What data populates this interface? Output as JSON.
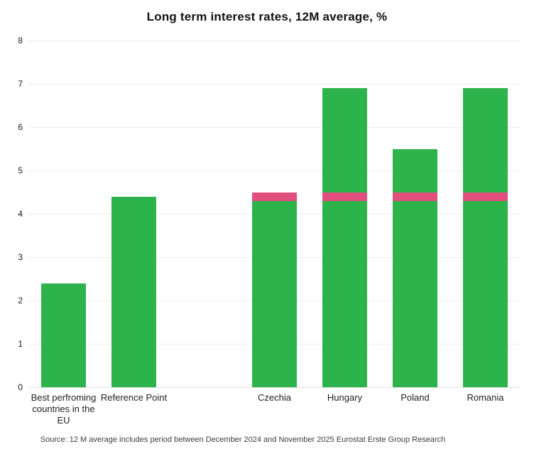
{
  "chart_data": {
    "type": "bar",
    "title": "Long term interest rates, 12M average, %",
    "xlabel": "",
    "ylabel": "",
    "ylim": [
      0,
      8
    ],
    "yticks": [
      0,
      1,
      2,
      3,
      4,
      5,
      6,
      7,
      8
    ],
    "grid": true,
    "legend": false,
    "slot_count": 7,
    "colors": {
      "bar_green": "#2db34c",
      "band_pink": "#e24e7d",
      "gridline": "#ececec",
      "baseline": "#e0e0e0",
      "axis_text": "#1a1a1a"
    },
    "bars": [
      {
        "label": "Best perfroming countries in the EU",
        "label_lines": [
          "Best perfroming",
          "countries in the",
          "EU"
        ],
        "slot": 0,
        "value": 2.4,
        "pink_band": null
      },
      {
        "label": "Reference Point",
        "label_lines": [
          "Reference Point"
        ],
        "slot": 1,
        "value": 4.4,
        "pink_band": null
      },
      {
        "label": "Czechia",
        "label_lines": [
          "Czechia"
        ],
        "slot": 3,
        "value": 4.3,
        "pink_band": [
          4.3,
          4.5
        ]
      },
      {
        "label": "Hungary",
        "label_lines": [
          "Hungary"
        ],
        "slot": 4,
        "value": 6.9,
        "pink_band": [
          4.3,
          4.5
        ]
      },
      {
        "label": "Poland",
        "label_lines": [
          "Poland"
        ],
        "slot": 5,
        "value": 5.5,
        "pink_band": [
          4.3,
          4.5
        ]
      },
      {
        "label": "Romania",
        "label_lines": [
          "Romania"
        ],
        "slot": 6,
        "value": 6.9,
        "pink_band": [
          4.3,
          4.5
        ]
      }
    ],
    "source": "Source: 12 M average includes period between December 2024 and November 2025 Eurostat Erste Group Research"
  }
}
